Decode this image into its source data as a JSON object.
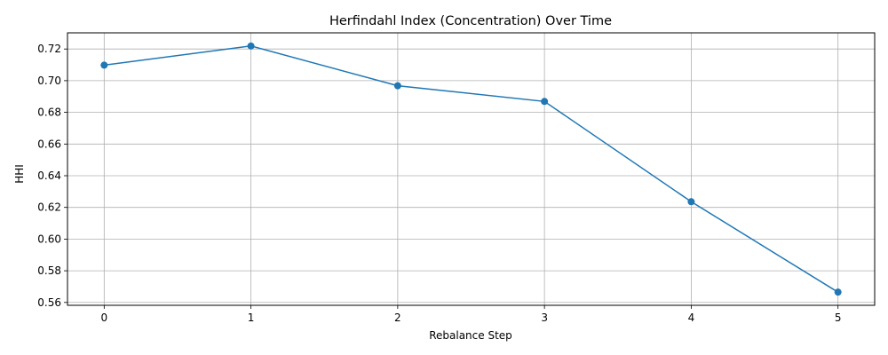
{
  "chart_data": {
    "type": "line",
    "title": "Herfindahl Index (Concentration) Over Time",
    "xlabel": "Rebalance Step",
    "ylabel": "HHI",
    "x": [
      0,
      1,
      2,
      3,
      4,
      5
    ],
    "series": [
      {
        "values": [
          0.7098,
          0.7219,
          0.6968,
          0.6869,
          0.6236,
          0.5665
        ],
        "color": "#1f77b4"
      }
    ],
    "xlim": [
      -0.25,
      5.25
    ],
    "ylim": [
      0.5582,
      0.7302
    ],
    "xticks": [
      0,
      1,
      2,
      3,
      4,
      5
    ],
    "xtick_labels": [
      "0",
      "1",
      "2",
      "3",
      "4",
      "5"
    ],
    "yticks": [
      0.56,
      0.58,
      0.6,
      0.62,
      0.64,
      0.66,
      0.68,
      0.7,
      0.72
    ],
    "ytick_labels": [
      "0.56",
      "0.58",
      "0.60",
      "0.62",
      "0.64",
      "0.66",
      "0.68",
      "0.70",
      "0.72"
    ],
    "grid": true,
    "marker": "circle"
  }
}
